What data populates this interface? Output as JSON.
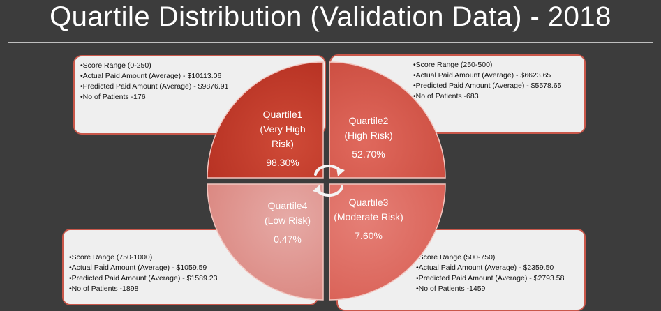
{
  "title": "Quartile Distribution (Validation Data) - 2018",
  "colors": {
    "background": "#3c3c3c",
    "quartile1": "#c33a2a",
    "quartile2": "#d6574a",
    "quartile3": "#df6d64",
    "quartile4": "#e19a96",
    "box_border": "#c9574a",
    "box_fill": "#efefef"
  },
  "quartiles": [
    {
      "name": "Quartile1",
      "risk": "(Very High Risk)",
      "percent": "98.30%",
      "details": [
        "•Score Range (0-250)",
        "•Actual Paid Amount (Average) - $10113.06",
        "•Predicted  Paid Amount (Average) - $9876.91",
        "•No of Patients -176"
      ]
    },
    {
      "name": "Quartile2",
      "risk": "(High Risk)",
      "percent": "52.70%",
      "details": [
        "•Score Range (250-500)",
        "•Actual Paid Amount (Average) - $6623.65",
        "•Predicted  Paid Amount (Average) - $5578.65",
        "•No of Patients -683"
      ]
    },
    {
      "name": "Quartile3",
      "risk": "(Moderate Risk)",
      "percent": "7.60%",
      "details": [
        "•Score Range (500-750)",
        "•Actual Paid Amount (Average) - $2359.50",
        "•Predicted  Paid Amount (Average) - $2793.58",
        "•No of Patients -1459"
      ]
    },
    {
      "name": "Quartile4",
      "risk": "(Low Risk)",
      "percent": "0.47%",
      "details": [
        "•Score Range (750-1000)",
        "•Actual Paid Amount (Average) - $1059.59",
        "•Predicted  Paid Amount (Average) - $1589.23",
        "•No of Patients -1898"
      ]
    }
  ],
  "center_icon": "cycle-arrows-icon"
}
